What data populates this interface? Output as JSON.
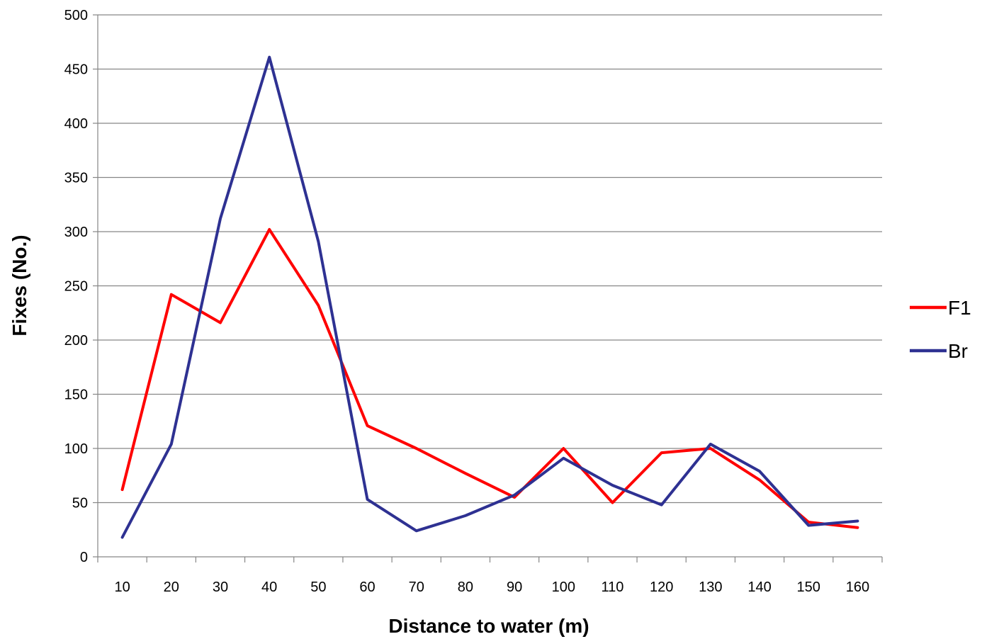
{
  "chart_data": {
    "type": "line",
    "xlabel": "Distance to water (m)",
    "ylabel": "Fixes (No.)",
    "categories": [
      "10",
      "20",
      "30",
      "40",
      "50",
      "60",
      "70",
      "80",
      "90",
      "100",
      "110",
      "120",
      "130",
      "140",
      "150",
      "160"
    ],
    "ylim": [
      0,
      500
    ],
    "yticks": [
      0,
      50,
      100,
      150,
      200,
      250,
      300,
      350,
      400,
      450,
      500
    ],
    "grid": true,
    "legend_position": "right",
    "series": [
      {
        "name": "F1",
        "color": "#ff0000",
        "values": [
          62,
          242,
          216,
          302,
          232,
          121,
          100,
          77,
          55,
          100,
          50,
          96,
          100,
          71,
          32,
          27
        ]
      },
      {
        "name": "Br",
        "color": "#2e3192",
        "values": [
          18,
          104,
          312,
          461,
          291,
          53,
          24,
          38,
          57,
          91,
          66,
          48,
          104,
          79,
          29,
          33
        ]
      }
    ]
  }
}
